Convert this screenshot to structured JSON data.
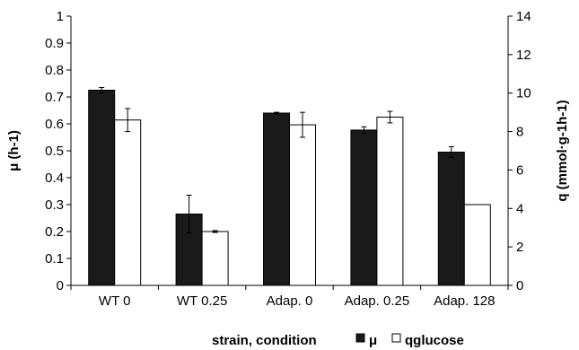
{
  "chart_data": {
    "type": "bar",
    "categories": [
      "WT 0",
      "WT 0.25",
      "Adap. 0",
      "Adap. 0.25",
      "Adap. 128"
    ],
    "series": [
      {
        "name": "μ",
        "axis": "left",
        "color": "#1a1a1a",
        "values": [
          0.725,
          0.265,
          0.64,
          0.577,
          0.495
        ],
        "errors": [
          0.01,
          0.07,
          0.003,
          0.012,
          0.02
        ]
      },
      {
        "name": "qglucose",
        "axis": "right",
        "color": "#ffffff",
        "values": [
          8.6,
          2.8,
          8.35,
          8.75,
          4.2
        ],
        "errors": [
          0.6,
          0.05,
          0.65,
          0.3,
          0.0
        ]
      }
    ],
    "xlabel": "strain, condition",
    "ylabel_left": "μ (h-1)",
    "ylabel_right": "q (mmol·g-1h-1)",
    "ylim_left": [
      0,
      1
    ],
    "yticks_left": [
      "0",
      "0.1",
      "0.2",
      "0.3",
      "0.4",
      "0.5",
      "0.6",
      "0.7",
      "0.8",
      "0.9",
      "1"
    ],
    "ylim_right": [
      0,
      14
    ],
    "yticks_right": [
      "0",
      "2",
      "4",
      "6",
      "8",
      "10",
      "12",
      "14"
    ],
    "grid": false,
    "legend_position": "bottom, beside x-axis label"
  }
}
